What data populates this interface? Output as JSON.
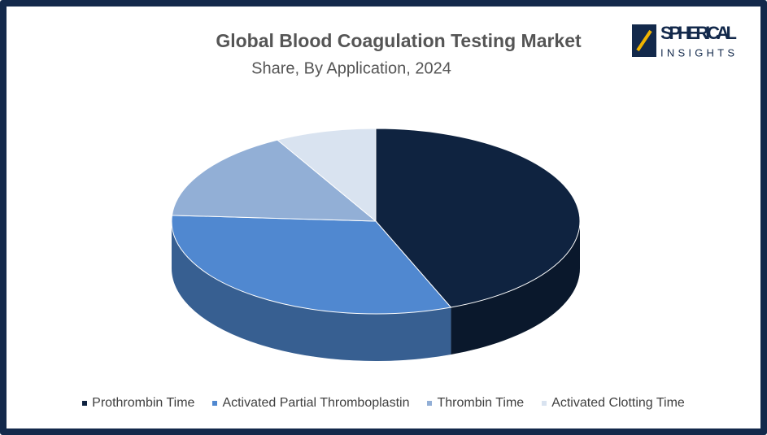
{
  "chart_data": {
    "type": "pie",
    "title": "Global Blood Coagulation Testing Market",
    "subtitle": "Share, By Application, 2024",
    "categories": [
      "Prothrombin Time",
      "Activated Partial Thromboplastin",
      "Thrombin Time",
      "Activated Clotting Time"
    ],
    "values": [
      44,
      32,
      16,
      8
    ],
    "colors": [
      "#0f2340",
      "#5088d0",
      "#92afd6",
      "#d9e3f0"
    ],
    "legend": "bottom"
  },
  "logo": {
    "name": "SPHERICAL",
    "tagline": "INSIGHTS"
  }
}
